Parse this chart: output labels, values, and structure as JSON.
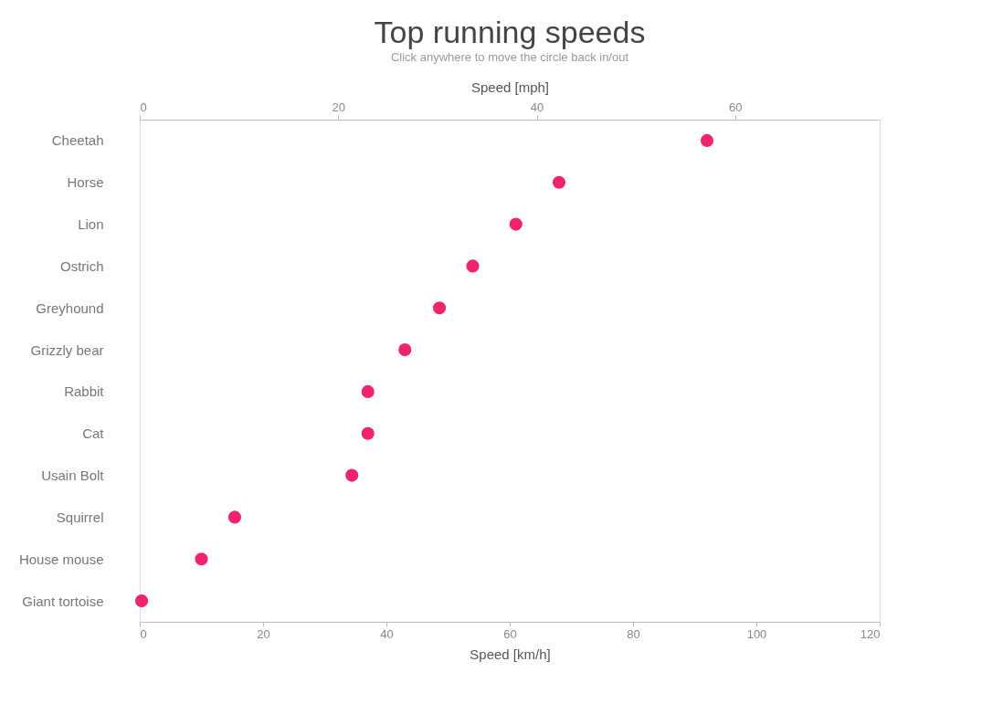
{
  "chart_data": {
    "type": "scatter",
    "orientation": "horizontal",
    "title": "Top running speeds",
    "subtitle": "Click anywhere to move the circle back in/out",
    "categories": [
      "Cheetah",
      "Horse",
      "Lion",
      "Ostrich",
      "Greyhound",
      "Grizzly bear",
      "Rabbit",
      "Cat",
      "Usain Bolt",
      "Squirrel",
      "House mouse",
      "Giant tortoise"
    ],
    "values": [
      92,
      68,
      61,
      54,
      48.6,
      43,
      37,
      37,
      34.4,
      15.4,
      10,
      0.3
    ],
    "color": "#f0246e",
    "marker": "circle",
    "xlabel": "Speed [km/h]",
    "xlim": [
      0,
      120
    ],
    "xticks": [
      0,
      20,
      40,
      60,
      80,
      100,
      120
    ],
    "x2label": "Speed [mph]",
    "x2lim": [
      0,
      74.56
    ],
    "x2ticks": [
      0,
      20,
      40,
      60
    ],
    "grid": false
  }
}
